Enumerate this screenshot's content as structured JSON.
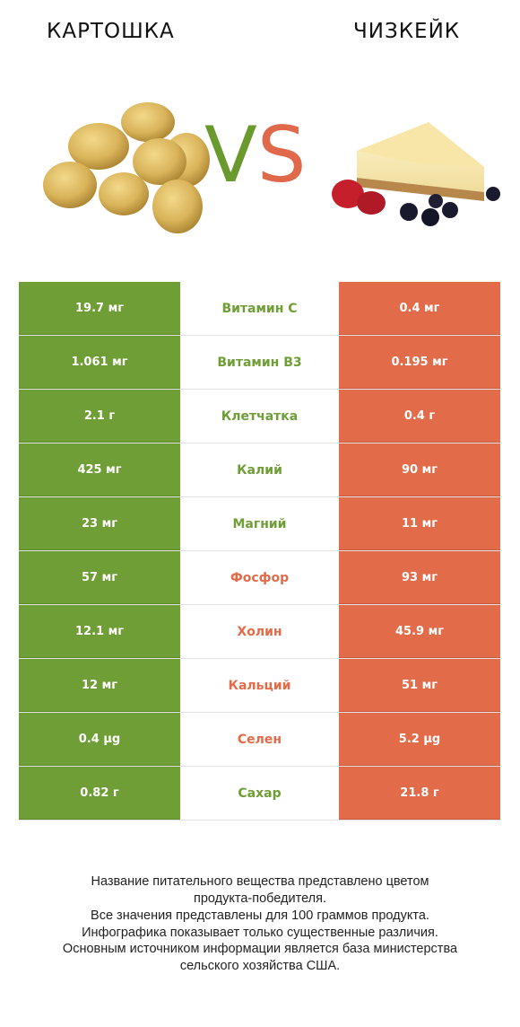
{
  "header": {
    "left_title": "КАРТОШКА",
    "right_title": "ЧИЗКЕЙК",
    "vs_v": "V",
    "vs_s": "S"
  },
  "colors": {
    "potato": "#6e9e35",
    "cheesecake": "#e26b4a"
  },
  "rows": [
    {
      "left": "19.7 мг",
      "name": "Витамин C",
      "right": "0.4 мг",
      "winner": "left"
    },
    {
      "left": "1.061 мг",
      "name": "Витамин B3",
      "right": "0.195 мг",
      "winner": "left"
    },
    {
      "left": "2.1 г",
      "name": "Клетчатка",
      "right": "0.4 г",
      "winner": "left"
    },
    {
      "left": "425 мг",
      "name": "Калий",
      "right": "90 мг",
      "winner": "left"
    },
    {
      "left": "23 мг",
      "name": "Магний",
      "right": "11 мг",
      "winner": "left"
    },
    {
      "left": "57 мг",
      "name": "Фосфор",
      "right": "93 мг",
      "winner": "right"
    },
    {
      "left": "12.1 мг",
      "name": "Холин",
      "right": "45.9 мг",
      "winner": "right"
    },
    {
      "left": "12 мг",
      "name": "Кальций",
      "right": "51 мг",
      "winner": "right"
    },
    {
      "left": "0.4 µg",
      "name": "Селен",
      "right": "5.2 µg",
      "winner": "right"
    },
    {
      "left": "0.82 г",
      "name": "Сахар",
      "right": "21.8 г",
      "winner": "left"
    }
  ],
  "footer": [
    "Название питательного вещества представлено цветом",
    "продукта-победителя.",
    "Все значения представлены для 100 граммов продукта.",
    "Инфографика показывает только существенные различия.",
    "Основным источником информации является база министерства",
    "сельского хозяйства США."
  ]
}
